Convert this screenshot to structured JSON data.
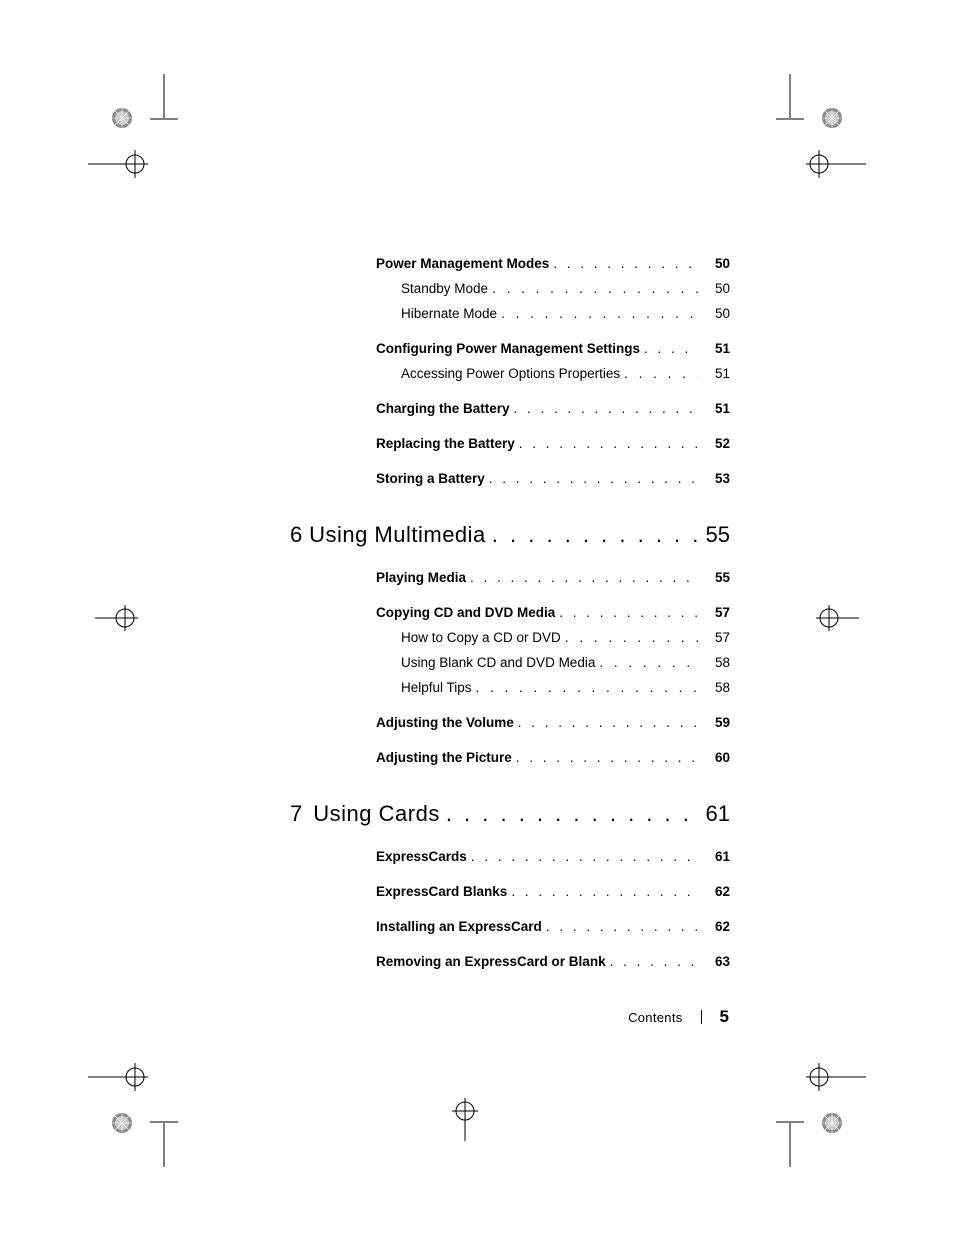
{
  "footer": {
    "label": "Contents",
    "page": "5"
  },
  "sections": [
    {
      "type": "block",
      "items": [
        {
          "level": 1,
          "text": "Power Management Modes",
          "page": "50"
        },
        {
          "level": 2,
          "text": "Standby Mode",
          "page": "50"
        },
        {
          "level": 2,
          "text": "Hibernate Mode",
          "page": "50"
        },
        {
          "level": 1,
          "text": "Configuring Power Management Settings",
          "page": "51"
        },
        {
          "level": 2,
          "text": "Accessing Power Options Properties",
          "page": "51"
        },
        {
          "level": 1,
          "text": "Charging the Battery",
          "page": "51"
        },
        {
          "level": 1,
          "text": "Replacing the Battery",
          "page": "52"
        },
        {
          "level": 1,
          "text": "Storing a Battery",
          "page": "53"
        }
      ]
    },
    {
      "type": "chapter",
      "num": "6",
      "title": "Using Multimedia",
      "page": "55",
      "items": [
        {
          "level": 1,
          "text": "Playing Media",
          "page": "55"
        },
        {
          "level": 1,
          "text": "Copying CD and DVD Media",
          "page": "57"
        },
        {
          "level": 2,
          "text": "How to Copy a CD or DVD",
          "page": "57"
        },
        {
          "level": 2,
          "text": "Using Blank CD and DVD Media",
          "page": "58"
        },
        {
          "level": 2,
          "text": "Helpful Tips",
          "page": "58"
        },
        {
          "level": 1,
          "text": "Adjusting the Volume",
          "page": "59"
        },
        {
          "level": 1,
          "text": "Adjusting the Picture",
          "page": "60"
        }
      ]
    },
    {
      "type": "chapter",
      "num": "7",
      "title": "Using Cards",
      "page": "61",
      "items": [
        {
          "level": 1,
          "text": "ExpressCards",
          "page": "61"
        },
        {
          "level": 1,
          "text": "ExpressCard Blanks",
          "page": "62"
        },
        {
          "level": 1,
          "text": "Installing an ExpressCard",
          "page": "62"
        },
        {
          "level": 1,
          "text": "Removing an ExpressCard or Blank",
          "page": "63"
        }
      ]
    }
  ],
  "style": {
    "font_body_pt": 13.5,
    "font_chapter_pt": 22,
    "bold_weight": 700,
    "colors": {
      "text": "#000000",
      "bg": "#ffffff",
      "mark_stroke": "#000000",
      "mark_fill_dark": "#8a8a8a",
      "mark_fill_mid": "#c9c9c9"
    }
  }
}
